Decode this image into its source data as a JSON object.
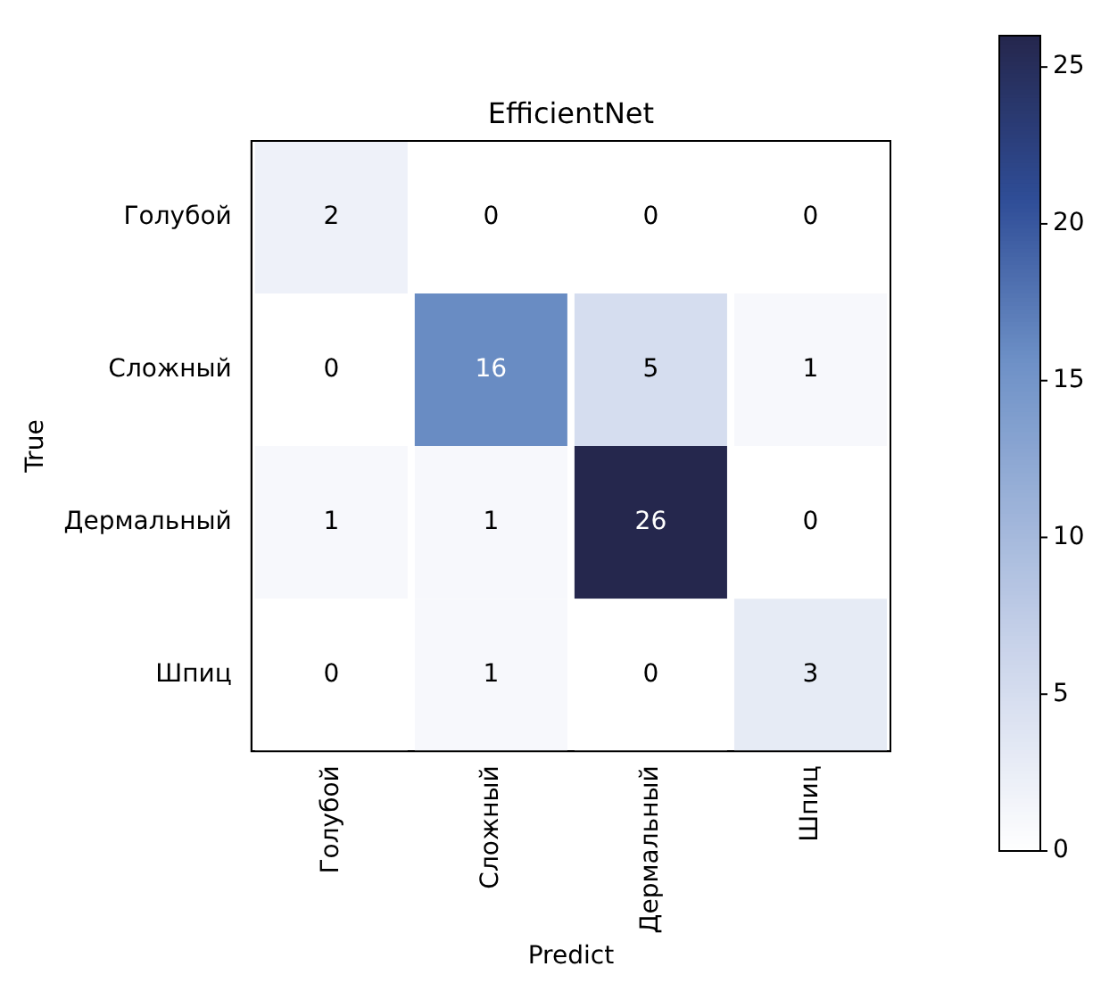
{
  "chart_data": {
    "type": "heatmap",
    "title": "EfficientNet",
    "xlabel": "Predict",
    "ylabel": "True",
    "categories": [
      "Голубой",
      "Сложный",
      "Дермальный",
      "Шпиц"
    ],
    "y_categories": [
      "Голубой",
      "Сложный",
      "Дермальный",
      "Шпиц"
    ],
    "cells": [
      [
        2,
        0,
        0,
        0
      ],
      [
        0,
        16,
        5,
        1
      ],
      [
        1,
        1,
        26,
        0
      ],
      [
        0,
        1,
        0,
        3
      ]
    ],
    "data_labels": true,
    "clim": [
      0,
      26
    ],
    "cticks": [
      0,
      5,
      10,
      15,
      20,
      25
    ],
    "grid": false
  }
}
